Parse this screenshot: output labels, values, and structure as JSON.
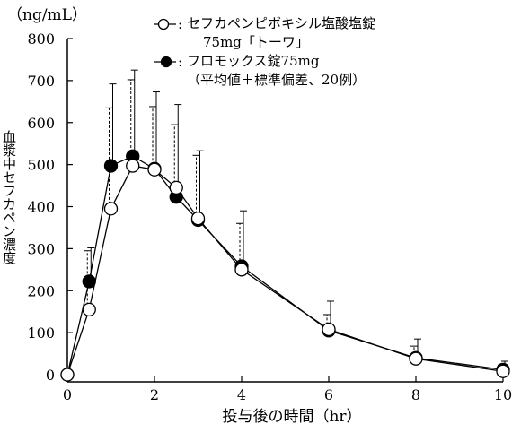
{
  "chart_data": {
    "type": "line",
    "unit_label": "（ng/mL）",
    "ylabel": "血漿中セフカペン濃度",
    "xlabel": "投与後の時間（hr）",
    "ylim": [
      0,
      800
    ],
    "xlim": [
      0,
      10
    ],
    "yticks": [
      0,
      100,
      200,
      300,
      400,
      500,
      600,
      700,
      800
    ],
    "xticks": [
      0,
      2,
      4,
      6,
      8,
      10
    ],
    "grid": false,
    "legend_position": "top-right",
    "legend_note": "（平均値＋標準偏差、20例）",
    "series": [
      {
        "name": "セフカペンピボキシル塩酸塩錠",
        "name_line2": "75mg「トーワ」",
        "marker": "open-circle",
        "error_style": "dashed",
        "x": [
          0,
          0.5,
          1,
          1.5,
          2,
          2.5,
          3,
          4,
          6,
          8,
          10
        ],
        "y": [
          0,
          155,
          395,
          497,
          488,
          445,
          372,
          250,
          108,
          38,
          8
        ],
        "err": [
          0,
          140,
          240,
          205,
          150,
          150,
          150,
          110,
          35,
          30,
          15
        ]
      },
      {
        "name": "フロモックス錠75mg",
        "marker": "filled-circle",
        "error_style": "solid",
        "x": [
          0,
          0.5,
          1,
          1.5,
          2,
          2.5,
          3,
          4,
          6,
          8,
          10
        ],
        "y": [
          0,
          222,
          497,
          520,
          490,
          423,
          368,
          258,
          105,
          40,
          12
        ],
        "err": [
          0,
          80,
          195,
          205,
          183,
          220,
          165,
          132,
          70,
          45,
          20
        ]
      }
    ]
  }
}
